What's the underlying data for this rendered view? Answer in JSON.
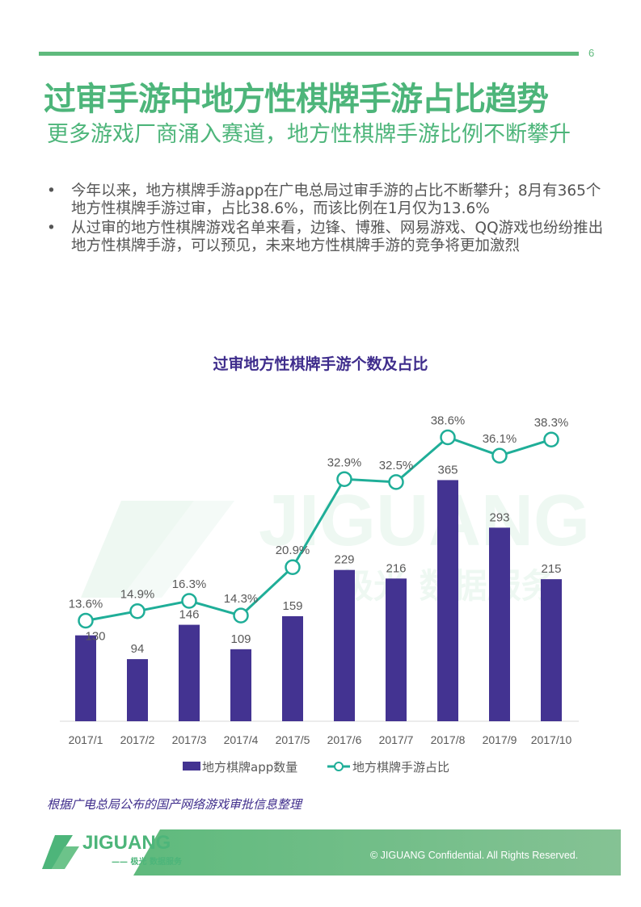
{
  "page_number": "6",
  "title": "过审手游中地方性棋牌手游占比趋势",
  "subtitle": "更多游戏厂商涌入赛道，地方性棋牌手游比例不断攀升",
  "bullets": [
    "今年以来，地方棋牌手游app在广电总局过审手游的占比不断攀升；8月有365个地方性棋牌手游过审，占比38.6%，而该比例在1月仅为13.6%",
    "从过审的地方性棋牌游戏名单来看，边锋、博雅、网易游戏、QQ游戏也纷纷推出地方性棋牌手游，可以预见，未来地方性棋牌手游的竞争将更加激烈"
  ],
  "bullet_symbol": "•",
  "chart_data": {
    "type": "bar+line",
    "title": "过审地方性棋牌手游个数及占比",
    "categories": [
      "2017/1",
      "2017/2",
      "2017/3",
      "2017/4",
      "2017/5",
      "2017/6",
      "2017/7",
      "2017/8",
      "2017/9",
      "2017/10"
    ],
    "series": [
      {
        "name": "地方棋牌app数量",
        "type": "bar",
        "color": "#433391",
        "values": [
          130,
          94,
          146,
          109,
          159,
          229,
          216,
          365,
          293,
          215
        ]
      },
      {
        "name": "地方棋牌手游占比",
        "type": "line",
        "color": "#1fae98",
        "unit": "%",
        "values": [
          13.6,
          14.9,
          16.3,
          14.3,
          20.9,
          32.9,
          32.5,
          38.6,
          36.1,
          38.3
        ]
      }
    ],
    "legend": "bottom",
    "grid": false
  },
  "source": "根据广电总局公布的国产网络游戏审批信息整理",
  "footer": {
    "logo": "JIGUANG",
    "logo_sub": "—— 极光 数据服务",
    "watermark": "JIGUANG 极光 数据服务",
    "copyright": "© JIGUANG Confidential. All Rights Reserved."
  },
  "colors": {
    "accent": "#4db57a",
    "bar": "#433391",
    "line": "#1fae98",
    "title_purple": "#3f2d8c"
  }
}
